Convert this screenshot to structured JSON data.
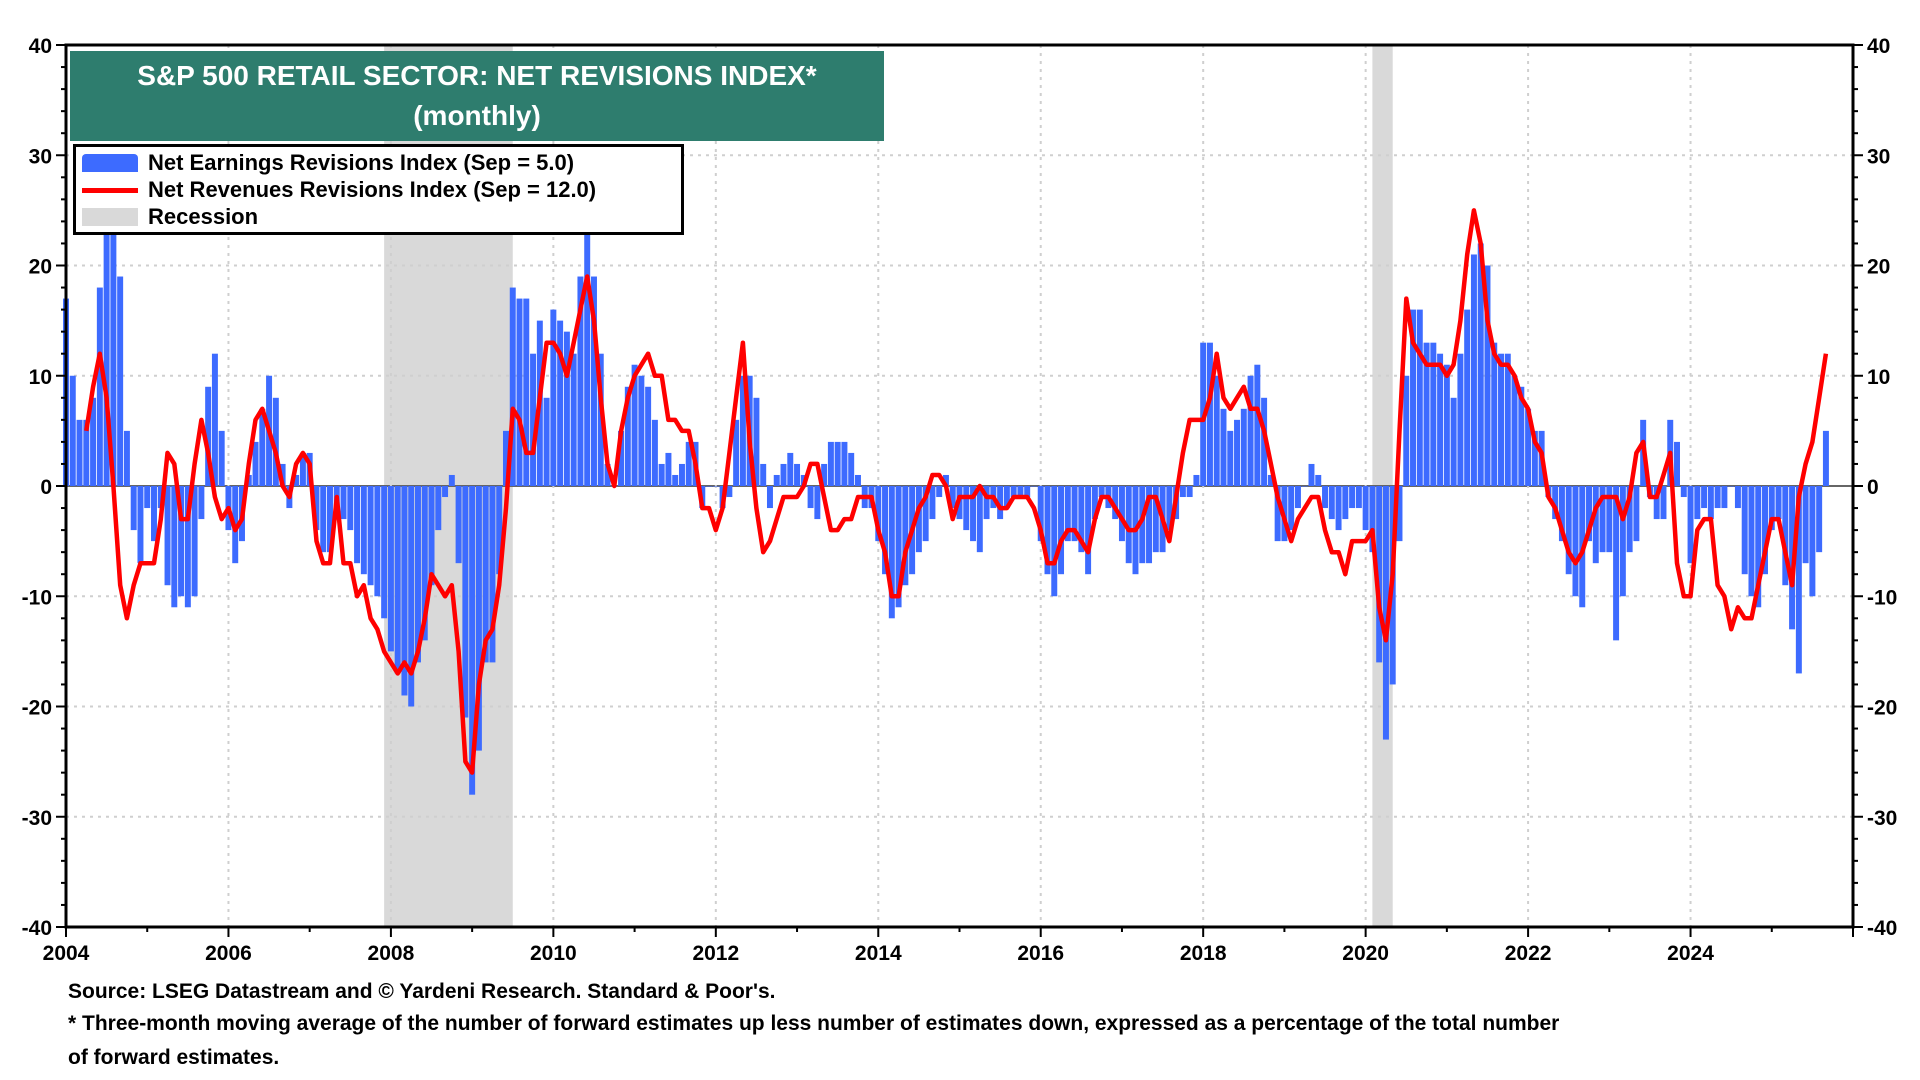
{
  "chart_data": {
    "type": "bar+line",
    "title": "S&P 500 RETAIL SECTOR: NET REVISIONS INDEX*",
    "subtitle": "(monthly)",
    "start_month": "2004-01",
    "frequency": "monthly",
    "ylim": [
      -40,
      40
    ],
    "yticks": [
      -40,
      -30,
      -20,
      -10,
      0,
      10,
      20,
      30,
      40
    ],
    "xlim": [
      2004,
      2026
    ],
    "xticks": [
      "2004",
      "2006",
      "2008",
      "2010",
      "2012",
      "2014",
      "2016",
      "2018",
      "2020",
      "2022",
      "2024"
    ],
    "grid": true,
    "legend_position": "top-left",
    "series": [
      {
        "name": "Net Earnings Revisions Index (Sep  = 5.0)",
        "type": "bar",
        "color": "#3d6bff",
        "values": [
          17,
          10,
          6,
          6,
          8,
          18,
          23,
          23,
          19,
          5,
          -4,
          -7,
          -2,
          -5,
          -2,
          -9,
          -11,
          -10,
          -11,
          -10,
          -3,
          9,
          12,
          5,
          -4,
          -7,
          -5,
          1,
          4,
          7,
          10,
          8,
          2,
          -2,
          1,
          3,
          3,
          -4,
          -6,
          -6,
          -2,
          -3,
          -4,
          -7,
          -8,
          -9,
          -10,
          -12,
          -15,
          -17,
          -19,
          -20,
          -16,
          -14,
          -9,
          -4,
          -1,
          1,
          -7,
          -21,
          -28,
          -24,
          -16,
          -16,
          -8,
          5,
          18,
          17,
          17,
          12,
          15,
          8,
          16,
          15,
          14,
          12,
          19,
          23,
          19,
          12,
          2,
          0,
          5,
          9,
          11,
          10,
          9,
          6,
          2,
          3,
          1,
          2,
          4,
          4,
          -2,
          0,
          0,
          -2,
          -1,
          6,
          10,
          10,
          8,
          2,
          -2,
          1,
          2,
          3,
          2,
          1,
          -2,
          -3,
          2,
          4,
          4,
          4,
          3,
          1,
          -2,
          -2,
          -5,
          -8,
          -12,
          -11,
          -9,
          -8,
          -6,
          -5,
          -3,
          -1,
          1,
          -2,
          -3,
          -4,
          -5,
          -6,
          -3,
          -2,
          -3,
          -2,
          -1,
          -1,
          -1,
          0,
          -5,
          -8,
          -10,
          -8,
          -5,
          -5,
          -6,
          -8,
          -3,
          -1,
          -2,
          -3,
          -5,
          -7,
          -8,
          -7,
          -7,
          -6,
          -6,
          -4,
          -3,
          -1,
          -1,
          1,
          13,
          13,
          10,
          7,
          5,
          6,
          7,
          10,
          11,
          8,
          1,
          -5,
          -5,
          -4,
          -2,
          0,
          2,
          1,
          -2,
          -3,
          -4,
          -3,
          -2,
          -2,
          -4,
          -6,
          -16,
          -23,
          -18,
          -5,
          10,
          16,
          16,
          13,
          13,
          12,
          11,
          8,
          12,
          16,
          21,
          22,
          20,
          13,
          12,
          12,
          10,
          9,
          7,
          5,
          5,
          -1,
          -3,
          -5,
          -8,
          -10,
          -11,
          -5,
          -7,
          -6,
          -6,
          -14,
          -10,
          -6,
          -5,
          6,
          -1,
          -3,
          -3,
          6,
          4,
          -1,
          -7,
          -3,
          -2,
          -3,
          -2,
          -2,
          0,
          -2,
          -8,
          -10,
          -11,
          -8,
          -4,
          -3,
          -9,
          -13,
          -17,
          -7,
          -10,
          -6,
          5
        ]
      },
      {
        "name": "Net Revenues Revisions Index (Sep  = 12.0)",
        "type": "line",
        "color": "#ff0000",
        "values": [
          null,
          null,
          null,
          5,
          9,
          12,
          8,
          0,
          -9,
          -12,
          -9,
          -7,
          -7,
          -7,
          -3,
          3,
          2,
          -3,
          -3,
          2,
          6,
          3,
          -1,
          -3,
          -2,
          -4,
          -3,
          2,
          6,
          7,
          5,
          3,
          0,
          -1,
          2,
          3,
          2,
          -5,
          -7,
          -7,
          -1,
          -7,
          -7,
          -10,
          -9,
          -12,
          -13,
          -15,
          -16,
          -17,
          -16,
          -17,
          -15,
          -12,
          -8,
          -9,
          -10,
          -9,
          -15,
          -25,
          -26,
          -18,
          -14,
          -13,
          -9,
          -2,
          7,
          6,
          3,
          3,
          8,
          13,
          13,
          12,
          10,
          13,
          16,
          19,
          15,
          8,
          2,
          0,
          5,
          8,
          10,
          11,
          12,
          10,
          10,
          6,
          6,
          5,
          5,
          2,
          -2,
          -2,
          -4,
          -2,
          3,
          8,
          13,
          4,
          -2,
          -6,
          -5,
          -3,
          -1,
          -1,
          -1,
          0,
          2,
          2,
          -1,
          -4,
          -4,
          -3,
          -3,
          -1,
          -1,
          -1,
          -4,
          -6,
          -10,
          -10,
          -6,
          -4,
          -2,
          -1,
          1,
          1,
          0,
          -3,
          -1,
          -1,
          -1,
          0,
          -1,
          -1,
          -2,
          -2,
          -1,
          -1,
          -1,
          -2,
          -4,
          -7,
          -7,
          -5,
          -4,
          -4,
          -5,
          -6,
          -3,
          -1,
          -1,
          -2,
          -3,
          -4,
          -4,
          -3,
          -1,
          -1,
          -3,
          -5,
          -1,
          3,
          6,
          6,
          6,
          8,
          12,
          8,
          7,
          8,
          9,
          7,
          7,
          5,
          2,
          -1,
          -3,
          -5,
          -3,
          -2,
          -1,
          -1,
          -4,
          -6,
          -6,
          -8,
          -5,
          -5,
          -5,
          -4,
          -11,
          -14,
          -8,
          5,
          17,
          13,
          12,
          11,
          11,
          11,
          10,
          11,
          15,
          21,
          25,
          22,
          15,
          12,
          11,
          11,
          10,
          8,
          7,
          4,
          3,
          -1,
          -2,
          -4,
          -6,
          -7,
          -6,
          -4,
          -2,
          -1,
          -1,
          -1,
          -3,
          -1,
          3,
          4,
          -1,
          -1,
          1,
          3,
          -7,
          -10,
          -10,
          -4,
          -3,
          -3,
          -9,
          -10,
          -13,
          -11,
          -12,
          -12,
          -9,
          -6,
          -3,
          -3,
          -6,
          -9,
          -1,
          2,
          4,
          8,
          12
        ]
      }
    ],
    "recessions": [
      [
        "2007-12",
        "2009-06"
      ],
      [
        "2020-02",
        "2020-04"
      ]
    ],
    "legend": [
      "Net Earnings Revisions Index (Sep  = 5.0)",
      "Net Revenues Revisions Index (Sep  = 12.0)",
      "Recession"
    ]
  },
  "footnotes": {
    "source": "Source: LSEG Datastream and © Yardeni Research. Standard & Poor's.",
    "note_line1": "* Three-month moving average of the number of forward estimates up less number of estimates down, expressed as a percentage of the total number",
    "note_line2": " of forward estimates."
  }
}
